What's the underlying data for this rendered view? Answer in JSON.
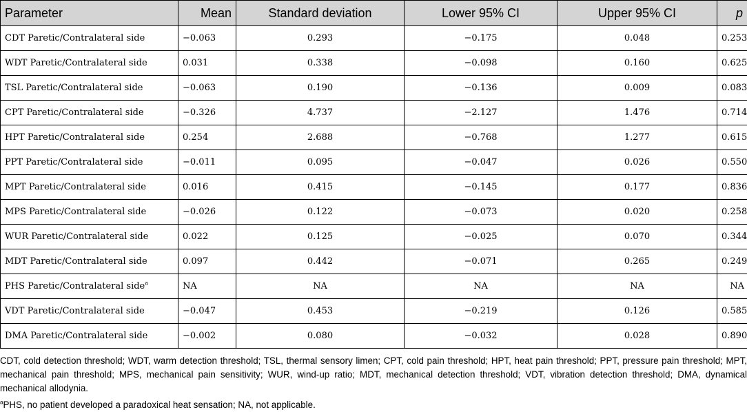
{
  "table": {
    "headers": [
      "Parameter",
      "Mean",
      "Standard deviation",
      "Lower 95% CI",
      "Upper 95% CI",
      "p"
    ],
    "rows": [
      {
        "param": "CDT Paretic/Contralateral side",
        "sup": "",
        "mean": "−0.063",
        "sd": "0.293",
        "lower": "−0.175",
        "upper": "0.048",
        "p": "0.253"
      },
      {
        "param": "WDT Paretic/Contralateral side",
        "sup": "",
        "mean": "0.031",
        "sd": "0.338",
        "lower": "−0.098",
        "upper": "0.160",
        "p": "0.625"
      },
      {
        "param": "TSL Paretic/Contralateral side",
        "sup": "",
        "mean": "−0.063",
        "sd": "0.190",
        "lower": "−0.136",
        "upper": "0.009",
        "p": "0.083"
      },
      {
        "param": "CPT Paretic/Contralateral side",
        "sup": "",
        "mean": "−0.326",
        "sd": "4.737",
        "lower": "−2.127",
        "upper": "1.476",
        "p": "0.714"
      },
      {
        "param": "HPT Paretic/Contralateral side",
        "sup": "",
        "mean": "0.254",
        "sd": "2.688",
        "lower": "−0.768",
        "upper": "1.277",
        "p": "0.615"
      },
      {
        "param": "PPT Paretic/Contralateral side",
        "sup": "",
        "mean": "−0.011",
        "sd": "0.095",
        "lower": "−0.047",
        "upper": "0.026",
        "p": "0.550"
      },
      {
        "param": "MPT Paretic/Contralateral side",
        "sup": "",
        "mean": "0.016",
        "sd": "0.415",
        "lower": "−0.145",
        "upper": "0.177",
        "p": "0.836"
      },
      {
        "param": "MPS Paretic/Contralateral side",
        "sup": "",
        "mean": "−0.026",
        "sd": "0.122",
        "lower": "−0.073",
        "upper": "0.020",
        "p": "0.258"
      },
      {
        "param": "WUR Paretic/Contralateral side",
        "sup": "",
        "mean": "0.022",
        "sd": "0.125",
        "lower": "−0.025",
        "upper": "0.070",
        "p": "0.344"
      },
      {
        "param": "MDT Paretic/Contralateral side",
        "sup": "",
        "mean": "0.097",
        "sd": "0.442",
        "lower": "−0.071",
        "upper": "0.265",
        "p": "0.249"
      },
      {
        "param": "PHS Paretic/Contralateral side",
        "sup": "a",
        "mean": "NA",
        "sd": "NA",
        "lower": "NA",
        "upper": "NA",
        "p": "NA"
      },
      {
        "param": "VDT Paretic/Contralateral side",
        "sup": "",
        "mean": "−0.047",
        "sd": "0.453",
        "lower": "−0.219",
        "upper": "0.126",
        "p": "0.585"
      },
      {
        "param": "DMA Paretic/Contralateral side",
        "sup": "",
        "mean": "−0.002",
        "sd": "0.080",
        "lower": "−0.032",
        "upper": "0.028",
        "p": "0.890"
      }
    ]
  },
  "notes": {
    "abbreviations": "CDT, cold detection threshold; WDT, warm detection threshold; TSL, thermal sensory limen; CPT, cold pain threshold; HPT, heat pain threshold; PPT, pressure pain threshold; MPT, mechanical pain threshold; MPS, mechanical pain sensitivity; WUR, wind-up ratio; MDT, mechanical detection threshold; VDT, vibration detection threshold; DMA, dynamical mechanical allodynia.",
    "footnote_marker": "a",
    "footnote": "PHS, no patient developed a paradoxical heat sensation; NA, not applicable."
  },
  "colors": {
    "header_background": "#d4d4d4",
    "border": "#000000"
  }
}
